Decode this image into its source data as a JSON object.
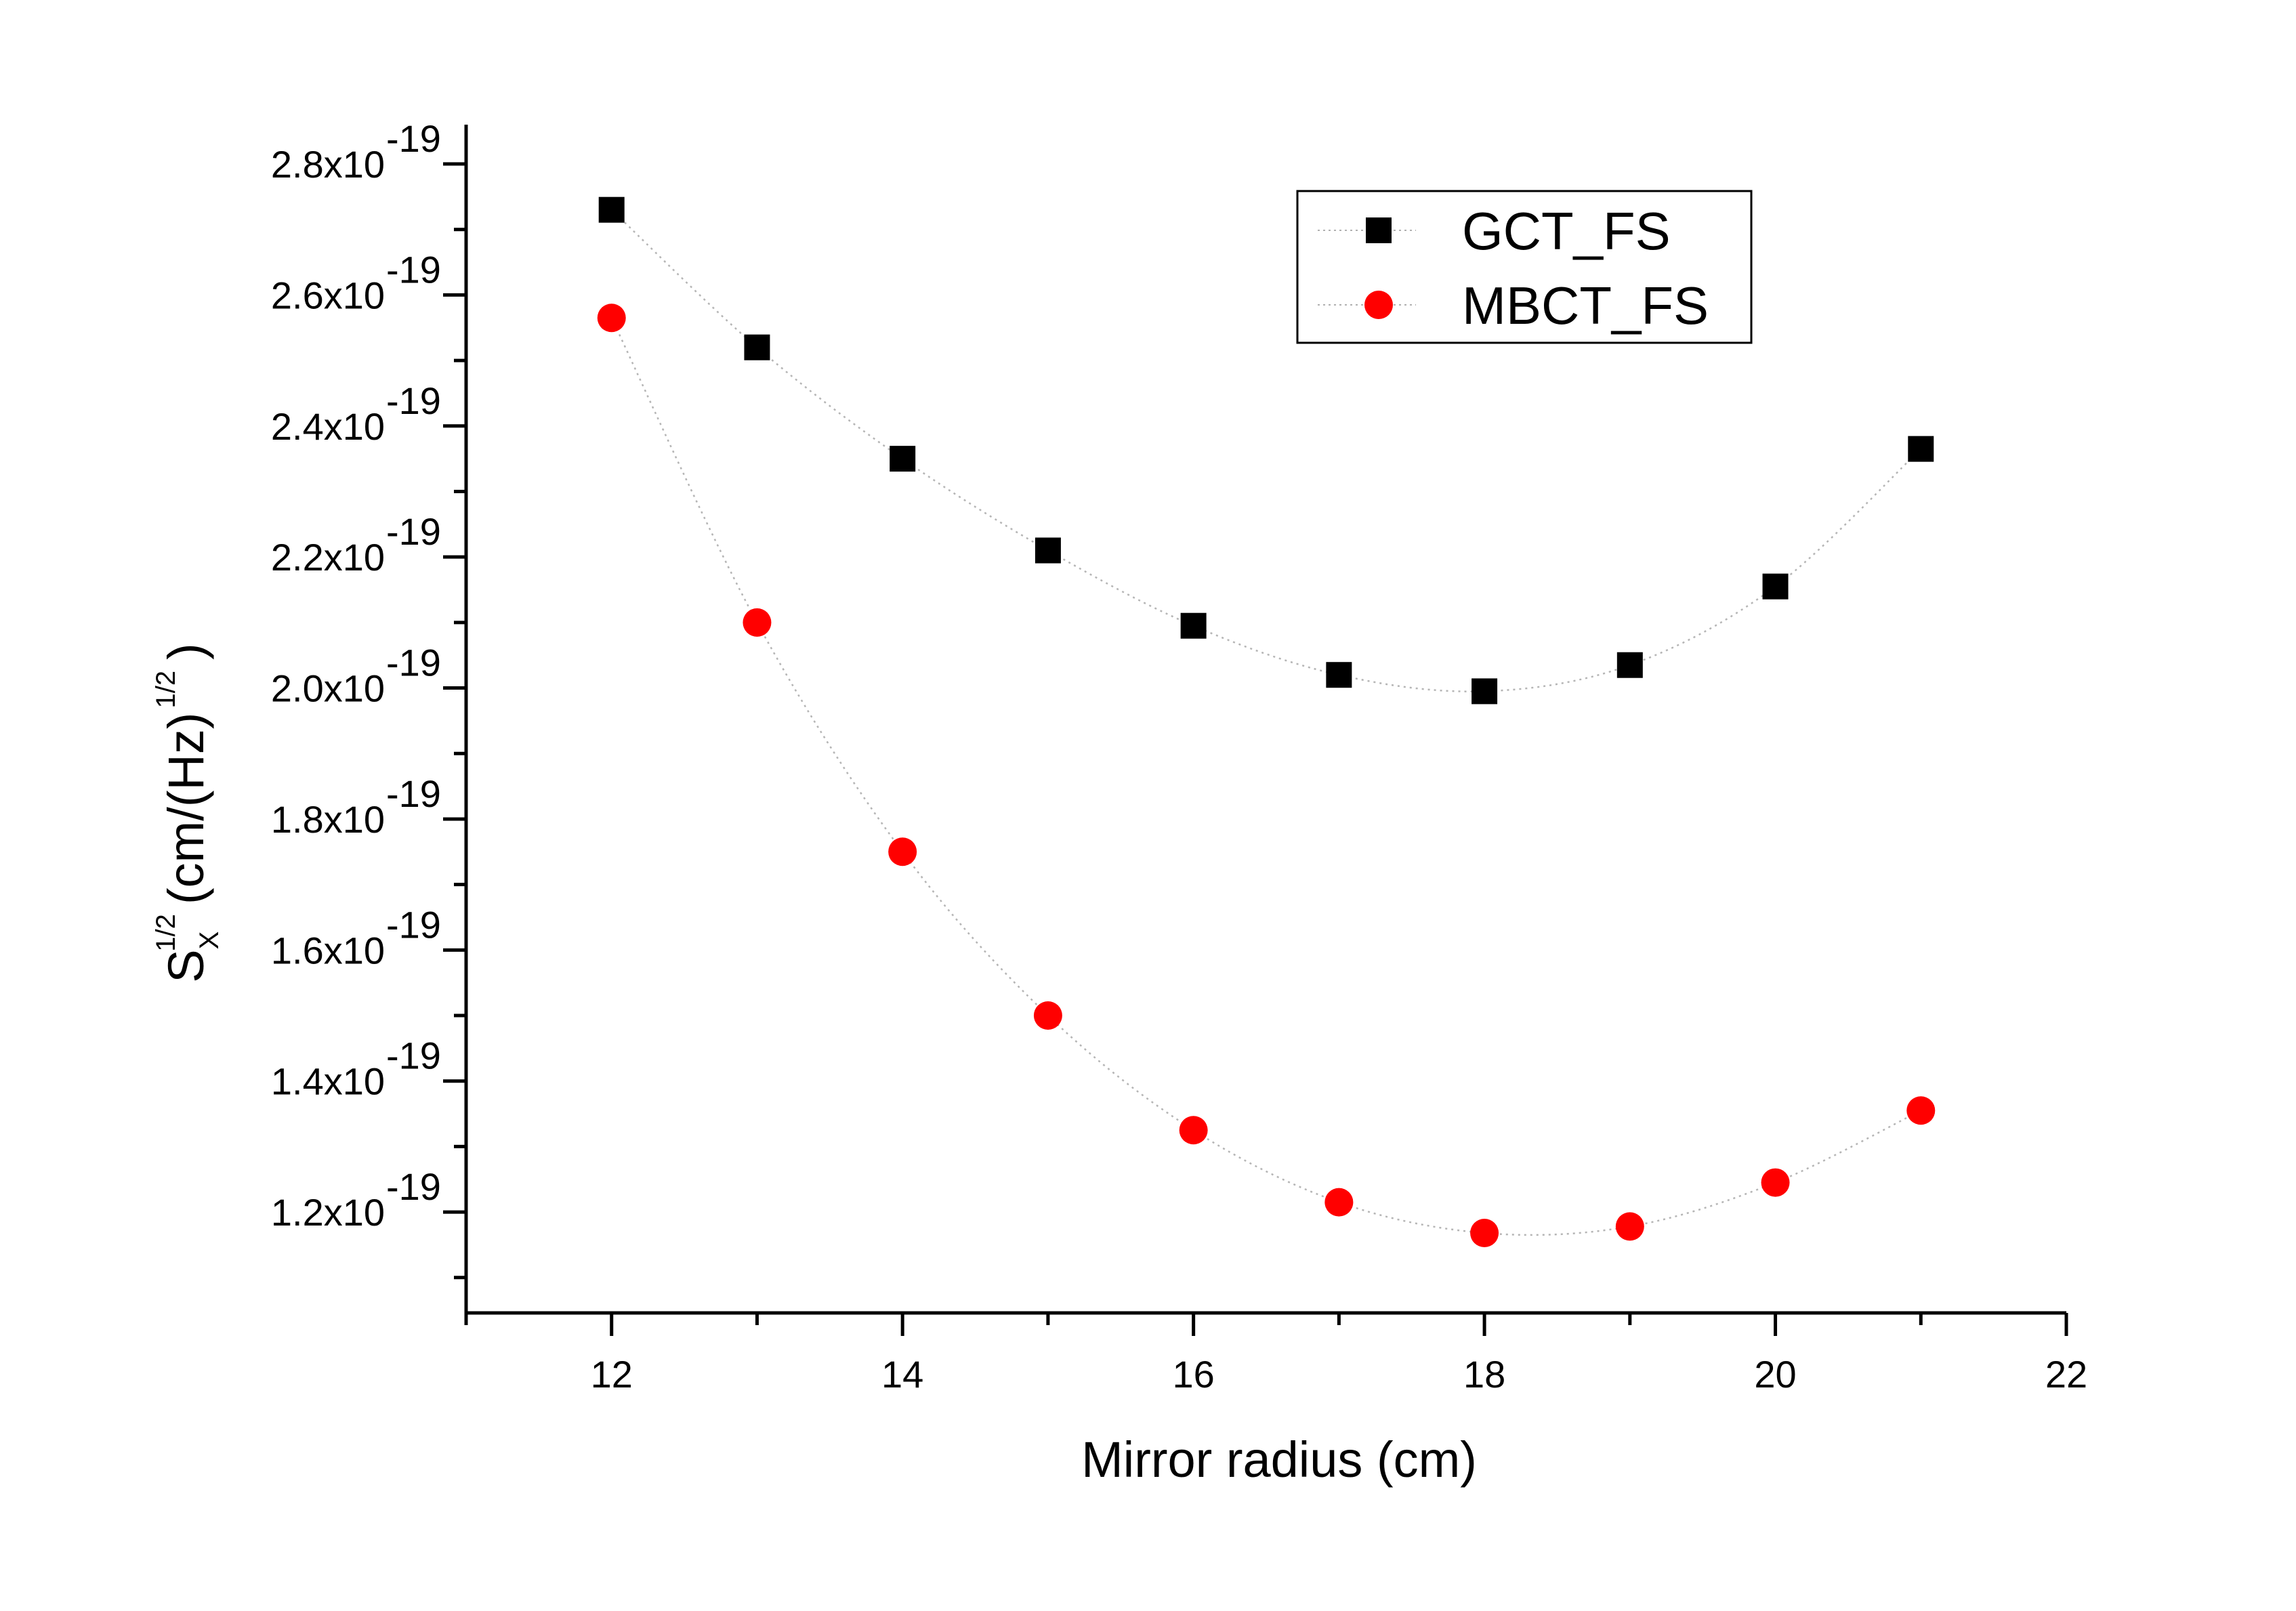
{
  "chart_data": {
    "type": "scatter",
    "title": "",
    "xlabel": "Mirror radius (cm)",
    "ylabel": {
      "base": "S",
      "sub": "X",
      "sup_a": "1/2",
      "mid": "(cm/(Hz)",
      "sup_b": "1/2",
      "end": ")"
    },
    "xlim": [
      11,
      22
    ],
    "ylim": [
      1.046,
      2.86
    ],
    "y_scale_exponent": "-19",
    "x_ticks": [
      12,
      14,
      16,
      18,
      20,
      22
    ],
    "x_tick_labels": [
      "12",
      "14",
      "16",
      "18",
      "20",
      "22"
    ],
    "y_ticks": [
      1.2,
      1.4,
      1.6,
      1.8,
      2.0,
      2.2,
      2.4,
      2.6,
      2.8
    ],
    "y_tick_labels": [
      "1.2x10",
      "1.4x10",
      "1.6x10",
      "1.8x10",
      "2.0x10",
      "2.2x10",
      "2.4x10",
      "2.6x10",
      "2.8x10"
    ],
    "legend_position": "top-right",
    "x": [
      12,
      13,
      14,
      15,
      16,
      17,
      18,
      19,
      20,
      21
    ],
    "series": [
      {
        "name": "GCT_FS",
        "marker": "square",
        "color": "#000000",
        "values": [
          2.73,
          2.52,
          2.35,
          2.21,
          2.095,
          2.02,
          1.995,
          2.035,
          2.155,
          2.365
        ]
      },
      {
        "name": "MBCT_FS",
        "marker": "circle",
        "color": "#ff0000",
        "values": [
          2.565,
          2.1,
          1.75,
          1.5,
          1.325,
          1.215,
          1.168,
          1.178,
          1.245,
          1.355
        ]
      }
    ],
    "connector_line": "dotted",
    "grid": false
  }
}
